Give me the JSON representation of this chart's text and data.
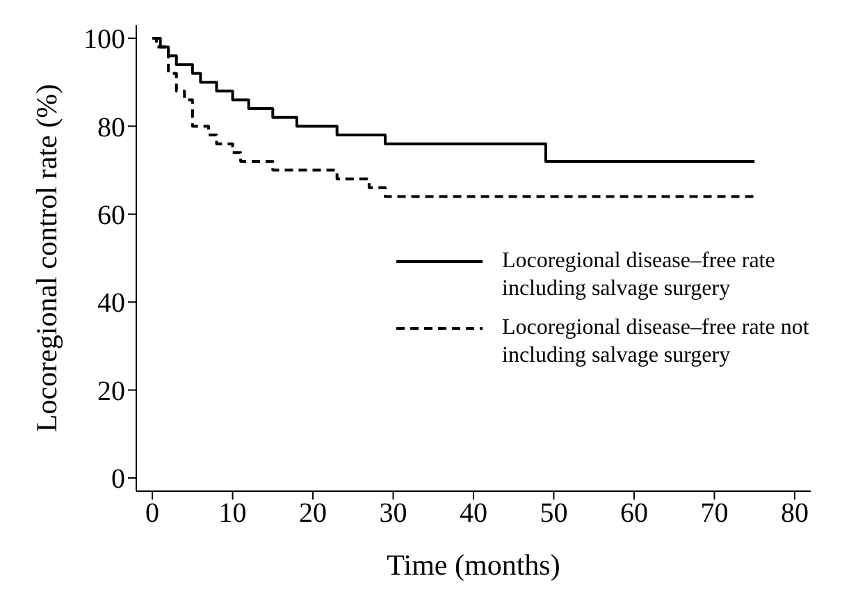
{
  "chart_data": {
    "type": "step",
    "xlabel": "Time (months)",
    "ylabel": "Locoregional control rate (%)",
    "xlim": [
      -2,
      82
    ],
    "xticks": [
      0,
      10,
      20,
      30,
      40,
      50,
      60,
      70,
      80
    ],
    "ylim": [
      -3,
      103
    ],
    "yticks": [
      0,
      20,
      40,
      60,
      80,
      100
    ],
    "grid": false,
    "legend": "right",
    "marker": "none",
    "series": [
      {
        "name": "Locoregional disease–free rate including salvage surgery",
        "color": "#000000",
        "line_style": "solid",
        "x": [
          0,
          1,
          2,
          3,
          5,
          6,
          8,
          10,
          12,
          15,
          18,
          23,
          29,
          49,
          75
        ],
        "values": [
          100,
          98,
          96,
          94,
          92,
          90,
          88,
          86,
          84,
          82,
          80,
          78,
          76,
          72,
          72
        ]
      },
      {
        "name": "Locoregional disease–free rate not including salvage surgery",
        "color": "#000000",
        "line_style": "dashed",
        "x": [
          0,
          0.5,
          2,
          3,
          4,
          5,
          7,
          8,
          10,
          11,
          15,
          22,
          23,
          27,
          29,
          75
        ],
        "values": [
          100,
          98,
          92,
          88,
          86,
          80,
          78,
          76,
          74,
          72,
          70,
          70,
          68,
          66,
          64,
          64
        ]
      }
    ]
  }
}
